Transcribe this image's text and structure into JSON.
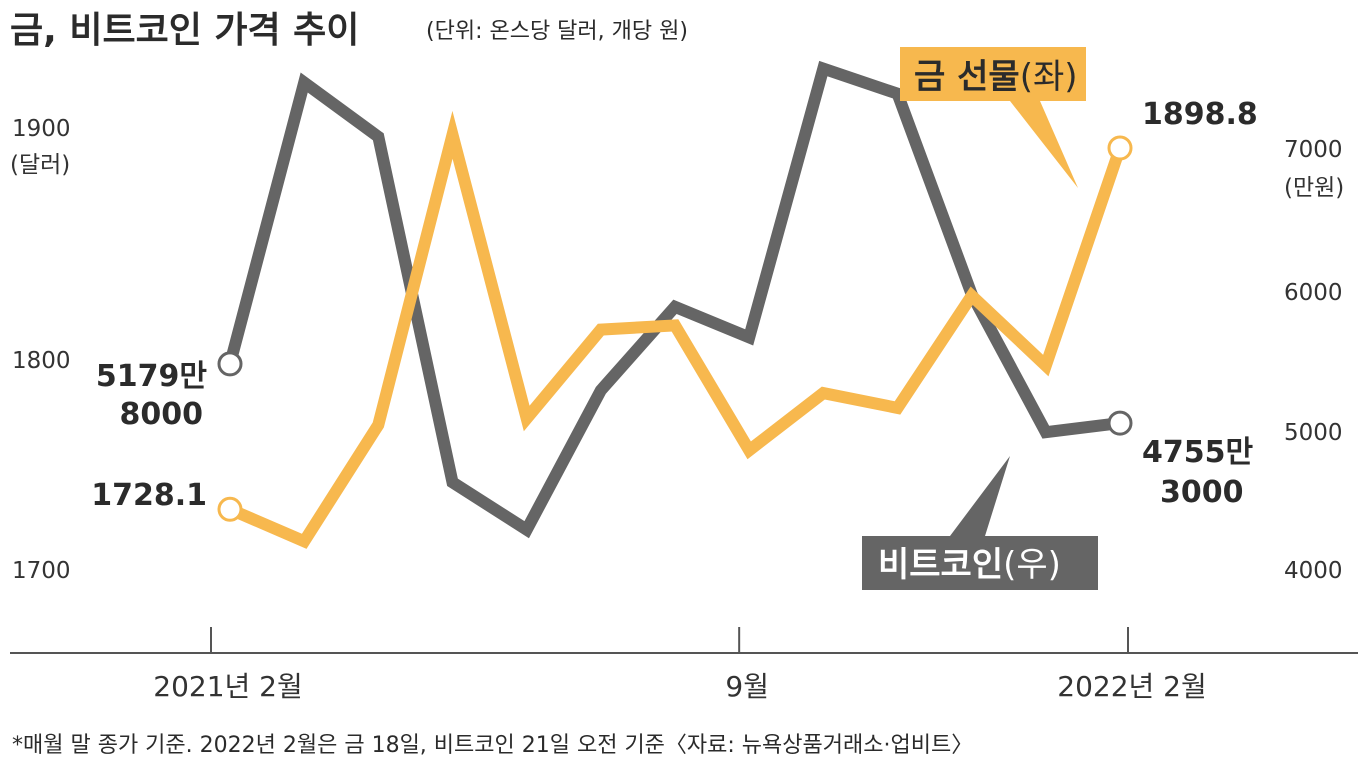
{
  "colors": {
    "gold": "#f7b84e",
    "bitcoin": "#656565",
    "axis": "#555555"
  },
  "header": {
    "title": "금, 비트코인 가격 추이",
    "unit": "(단위: 온스당 달러, 개당 원)"
  },
  "footnote": "*매월 말 종가 기준. 2022년 2월은 금 18일, 비트코인 21일 오전 기준〈자료: 뉴욕상품거래소·업비트〉",
  "chart_data": {
    "type": "line",
    "x": [
      "2021-02",
      "2021-03",
      "2021-04",
      "2021-05",
      "2021-06",
      "2021-07",
      "2021-08",
      "2021-09",
      "2021-10",
      "2021-11",
      "2021-12",
      "2022-01",
      "2022-02"
    ],
    "x_tick_labels": [
      {
        "x": "2021-02",
        "label": "2021년 2월"
      },
      {
        "x": "2021-09",
        "label": "9월"
      },
      {
        "x": "2022-02",
        "label": "2022년 2월"
      }
    ],
    "y_left": {
      "ticks": [
        1700,
        1800,
        1900
      ],
      "unit_label": "(달러)",
      "range": [
        1690,
        1935
      ]
    },
    "y_right": {
      "ticks": [
        4000,
        5000,
        6000,
        7000
      ],
      "unit_label": "(만원)",
      "range": [
        3600,
        7600
      ]
    },
    "series": [
      {
        "name_bold": "금 선물",
        "name_suffix": "(좌)",
        "axis": "left",
        "values": [
          1728.1,
          1713,
          1768,
          1905,
          1771,
          1813,
          1815,
          1756,
          1783,
          1776,
          1829,
          1796,
          1898.8
        ],
        "start_label": "1728.1",
        "end_label": "1898.8"
      },
      {
        "name_bold": "비트코인",
        "name_suffix": "(우)",
        "axis": "right",
        "values": [
          5179.8,
          7200,
          6810,
          4330,
          3990,
          4990,
          5590,
          5370,
          7300,
          7120,
          5680,
          4690,
          4755.3
        ],
        "start_label": [
          "5179만",
          "8000"
        ],
        "end_label": [
          "4755만",
          "3000"
        ]
      }
    ]
  }
}
